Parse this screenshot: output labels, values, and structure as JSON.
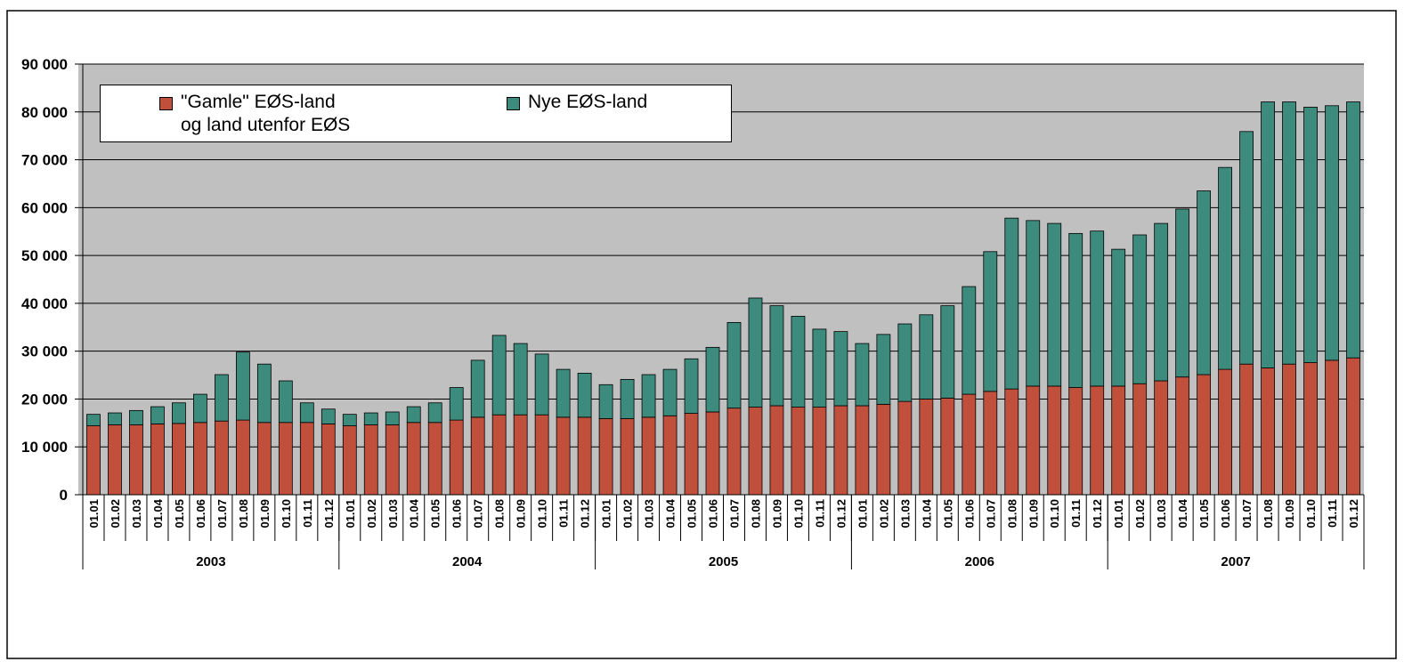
{
  "chart_data": {
    "type": "stacked_bar",
    "categories": [
      "01.01",
      "01.02",
      "01.03",
      "01.04",
      "01.05",
      "01.06",
      "01.07",
      "01.08",
      "01.09",
      "01.10",
      "01.11",
      "01.12",
      "01.01",
      "01.02",
      "01.03",
      "01.04",
      "01.05",
      "01.06",
      "01.07",
      "01.08",
      "01.09",
      "01.10",
      "01.11",
      "01.12",
      "01.01",
      "01.02",
      "01.03",
      "01.04",
      "01.05",
      "01.06",
      "01.07",
      "01.08",
      "01.09",
      "01.10",
      "01.11",
      "01.12",
      "01.01",
      "01.02",
      "01.03",
      "01.04",
      "01.05",
      "01.06",
      "01.07",
      "01.08",
      "01.09",
      "01.10",
      "01.11",
      "01.12",
      "01.01",
      "01.02",
      "01.03",
      "01.04",
      "01.05",
      "01.06",
      "01.07",
      "01.08",
      "01.09",
      "01.10",
      "01.11",
      "01.12"
    ],
    "groups": [
      "2003",
      "2004",
      "2005",
      "2006",
      "2007"
    ],
    "series": [
      {
        "name": "\"Gamle\" EØS-land\nog land utenfor EØS",
        "color": "#c0503c",
        "values": [
          14400,
          14600,
          14600,
          14800,
          14900,
          15100,
          15400,
          15600,
          15100,
          15100,
          15100,
          14800,
          14400,
          14600,
          14600,
          15100,
          15100,
          15600,
          16200,
          16700,
          16700,
          16700,
          16200,
          16200,
          15900,
          15900,
          16200,
          16500,
          17000,
          17300,
          18100,
          18300,
          18600,
          18300,
          18300,
          18600,
          18600,
          18900,
          19500,
          20000,
          20200,
          21000,
          21600,
          22100,
          22700,
          22700,
          22400,
          22700,
          22700,
          23200,
          23800,
          24600,
          25100,
          26200,
          27300,
          26500,
          27300,
          27600,
          28100,
          28600
        ]
      },
      {
        "name": "Nye EØS-land",
        "color": "#3d8b7d",
        "values": [
          2400,
          2500,
          3000,
          3600,
          4300,
          5900,
          9700,
          14200,
          12200,
          8700,
          4100,
          3100,
          2400,
          2500,
          2700,
          3300,
          4100,
          6800,
          11900,
          16600,
          14900,
          12700,
          10000,
          9200,
          7100,
          8200,
          8900,
          9700,
          11400,
          13500,
          17900,
          22800,
          20900,
          19000,
          16300,
          15500,
          13000,
          14600,
          16200,
          17600,
          19300,
          22500,
          29200,
          35700,
          34600,
          34000,
          32200,
          32400,
          28600,
          31100,
          32900,
          35100,
          38400,
          42200,
          48600,
          55600,
          54800,
          53400,
          53200,
          53500
        ]
      }
    ],
    "ylim": [
      0,
      90000
    ],
    "yticks": [
      0,
      {
        "value": 10000,
        "label": "10 000"
      },
      {
        "value": 20000,
        "label": "20 000"
      },
      {
        "value": 30000,
        "label": "30 000"
      },
      {
        "value": 40000,
        "label": "40 000"
      },
      {
        "value": 50000,
        "label": "50 000"
      },
      {
        "value": 60000,
        "label": "60 000"
      },
      {
        "value": 70000,
        "label": "70 000"
      },
      {
        "value": 80000,
        "label": "80 000"
      },
      {
        "value": 90000,
        "label": "90 000"
      }
    ],
    "grid": true,
    "legend": "top-left"
  }
}
